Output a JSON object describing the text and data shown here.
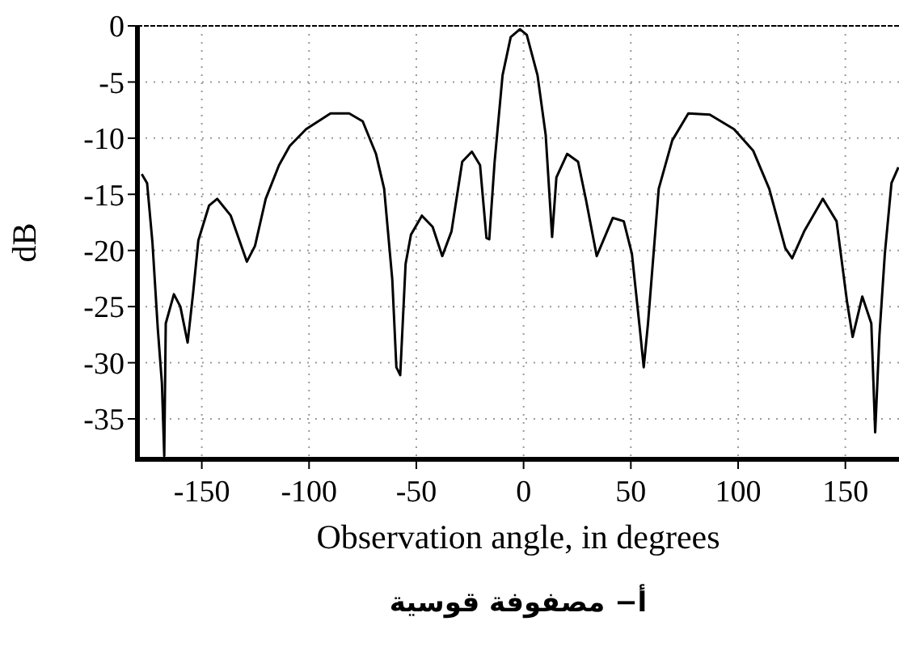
{
  "chart_data": {
    "type": "line",
    "xlabel": "Observation angle, in degrees",
    "ylabel": "dB",
    "annotations": [
      "أ− مصفوفة قوسية"
    ],
    "xlim": [
      -180,
      175
    ],
    "ylim": [
      -38.6,
      0
    ],
    "xticks": [
      -150,
      -100,
      -50,
      0,
      50,
      100,
      150
    ],
    "yticks": [
      0,
      -5,
      -10,
      -15,
      -20,
      -25,
      -30,
      -35
    ],
    "grid": true,
    "line_style": "solid",
    "marker": "none",
    "series": [
      {
        "color": "#000000",
        "x": [
          -178,
          -175.5,
          -173,
          -170.5,
          -168.6,
          -167.5,
          -166.8,
          -163,
          -160,
          -156.6,
          -154,
          -151.6,
          -146.6,
          -142.8,
          -136.5,
          -129,
          -125.2,
          -120.2,
          -114,
          -109,
          -101.4,
          -90,
          -81.3,
          -75,
          -68.8,
          -65,
          -61.2,
          -59.3,
          -57.5,
          -55,
          -52.5,
          -47.4,
          -42.4,
          -37.9,
          -33.6,
          -28.6,
          -24.1,
          -20.3,
          -17.3,
          -16,
          -13.5,
          -9.8,
          -6,
          -1.7,
          1.5,
          6.5,
          10.3,
          13.3,
          15.3,
          20.3,
          25.4,
          29.1,
          34.1,
          41.6,
          46.7,
          50.5,
          54.2,
          56,
          58,
          63,
          69.3,
          76.8,
          86.8,
          98.1,
          107,
          114.5,
          122,
          125.2,
          130.8,
          139.5,
          145.9,
          150.8,
          153.4,
          157.9,
          162.1,
          163.9,
          165.9,
          168.4,
          171.5,
          174.7
        ],
        "values": [
          -13.2,
          -14,
          -19.3,
          -27,
          -31.8,
          -38.3,
          -26.5,
          -23.9,
          -25,
          -28.2,
          -23.7,
          -19.1,
          -16,
          -15.4,
          -16.9,
          -21,
          -19.6,
          -15.4,
          -12.4,
          -10.7,
          -9.2,
          -7.8,
          -7.8,
          -8.5,
          -11.4,
          -14.5,
          -22.6,
          -30.4,
          -31.1,
          -21.2,
          -18.6,
          -16.9,
          -17.9,
          -20.5,
          -18.3,
          -12.1,
          -11.2,
          -12.4,
          -18.9,
          -19,
          -12.1,
          -4.4,
          -1,
          -0.3,
          -0.8,
          -4.4,
          -9.7,
          -18.8,
          -13.5,
          -11.4,
          -12.1,
          -15.5,
          -20.5,
          -17.1,
          -17.4,
          -20.3,
          -27,
          -30.4,
          -26.5,
          -14.5,
          -10.2,
          -7.8,
          -7.9,
          -9.2,
          -11.1,
          -14.5,
          -19.8,
          -20.7,
          -18.3,
          -15.4,
          -17.4,
          -24.6,
          -27.7,
          -24.1,
          -26.5,
          -36.2,
          -27.5,
          -20.3,
          -14,
          -12.6
        ]
      }
    ]
  }
}
